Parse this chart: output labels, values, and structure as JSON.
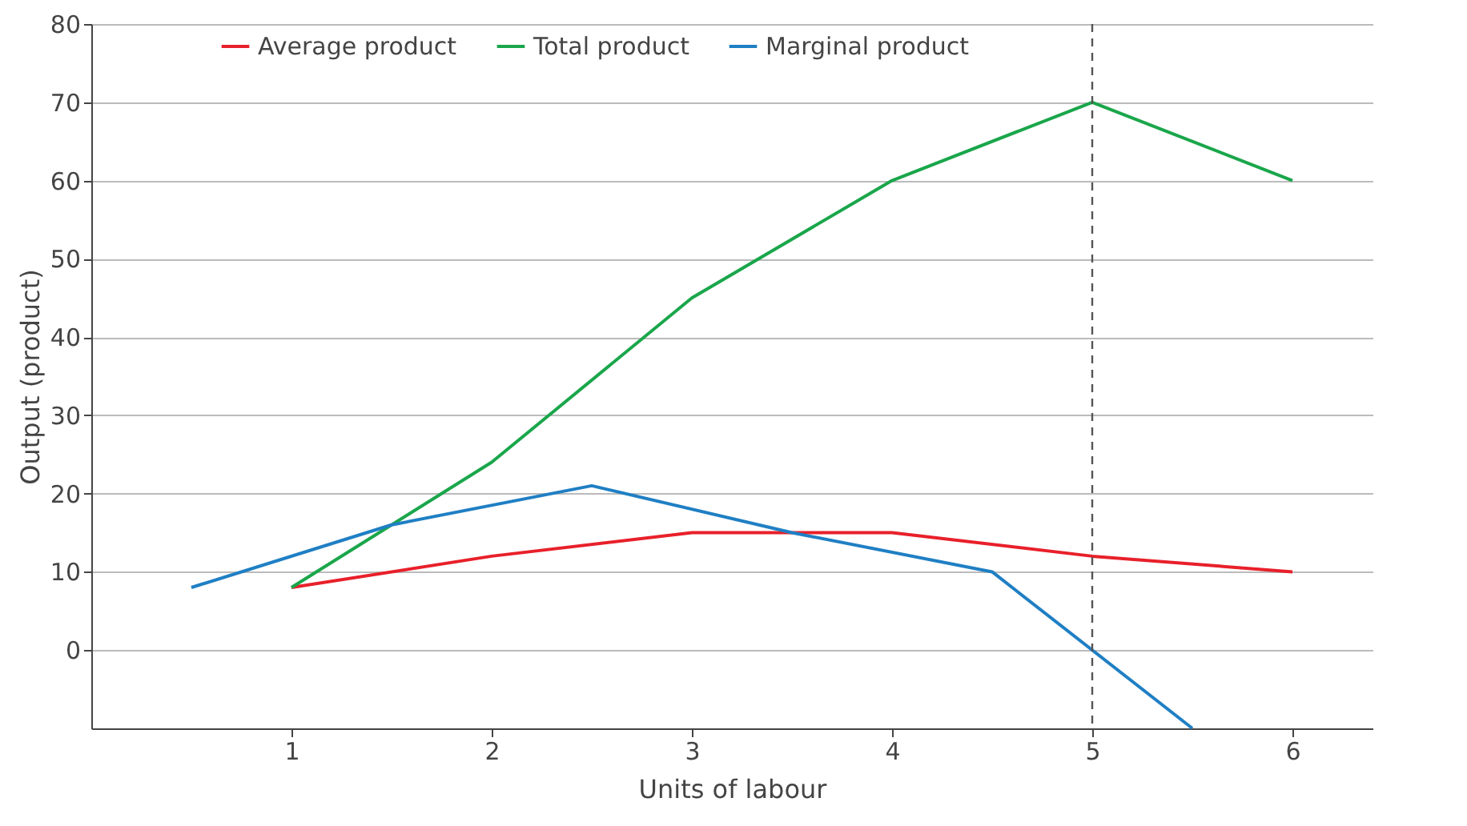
{
  "chart_data": {
    "type": "line",
    "xlabel": "Units of labour",
    "ylabel": "Output (product)",
    "xlim": [
      0,
      6.4
    ],
    "xticks": [
      1,
      2,
      3,
      4,
      5,
      6
    ],
    "ylim": [
      -10,
      80
    ],
    "yticks": [
      0,
      10,
      20,
      30,
      40,
      50,
      60,
      70,
      80
    ],
    "grid": "y",
    "legend": "top",
    "marker": "none",
    "line_style": "solid",
    "x": [
      1,
      2,
      3,
      4,
      5,
      6
    ],
    "series": [
      {
        "name": "Average product",
        "color": "#e8202a",
        "values": [
          8,
          12,
          15,
          15,
          12,
          10
        ]
      },
      {
        "name": "Total product",
        "color": "#1aa64b",
        "values": [
          8,
          24,
          45,
          60,
          70,
          60
        ]
      },
      {
        "name": "Marginal product",
        "color": "#1f7fc4",
        "x": [
          0.5,
          1.5,
          2.5,
          3.5,
          4.5,
          5.5
        ],
        "values": [
          8,
          16,
          21,
          15,
          10,
          -10
        ]
      }
    ],
    "ref_lines": [
      {
        "axis": "x",
        "value": 5,
        "color": "#555555",
        "line_style": "dashed"
      }
    ]
  }
}
